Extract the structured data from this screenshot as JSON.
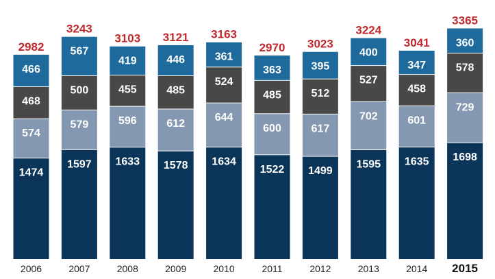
{
  "chart_data": {
    "type": "bar",
    "stacked": true,
    "categories": [
      "2006",
      "2007",
      "2008",
      "2009",
      "2010",
      "2011",
      "2012",
      "2013",
      "2014",
      "2015"
    ],
    "emphasized_category": "2015",
    "series": [
      {
        "color": "#0b3558",
        "values": [
          1474,
          1597,
          1633,
          1578,
          1634,
          1522,
          1499,
          1595,
          1635,
          1698
        ]
      },
      {
        "color": "#8499b1",
        "values": [
          574,
          579,
          596,
          612,
          644,
          600,
          617,
          702,
          601,
          729
        ]
      },
      {
        "color": "#484848",
        "values": [
          468,
          500,
          455,
          485,
          524,
          485,
          512,
          527,
          458,
          578
        ]
      },
      {
        "color": "#1f6a9c",
        "values": [
          466,
          567,
          419,
          446,
          361,
          363,
          395,
          400,
          347,
          360
        ]
      }
    ],
    "totals": [
      2982,
      3243,
      3103,
      3121,
      3163,
      2970,
      3023,
      3224,
      3041,
      3365
    ],
    "ylim": [
      0,
      3400
    ],
    "grid": false,
    "title": "",
    "xlabel": "",
    "ylabel": ""
  },
  "colors": {
    "segment_label": "#ffffff",
    "total_label": "#c0282d",
    "background": "#ffffff"
  }
}
